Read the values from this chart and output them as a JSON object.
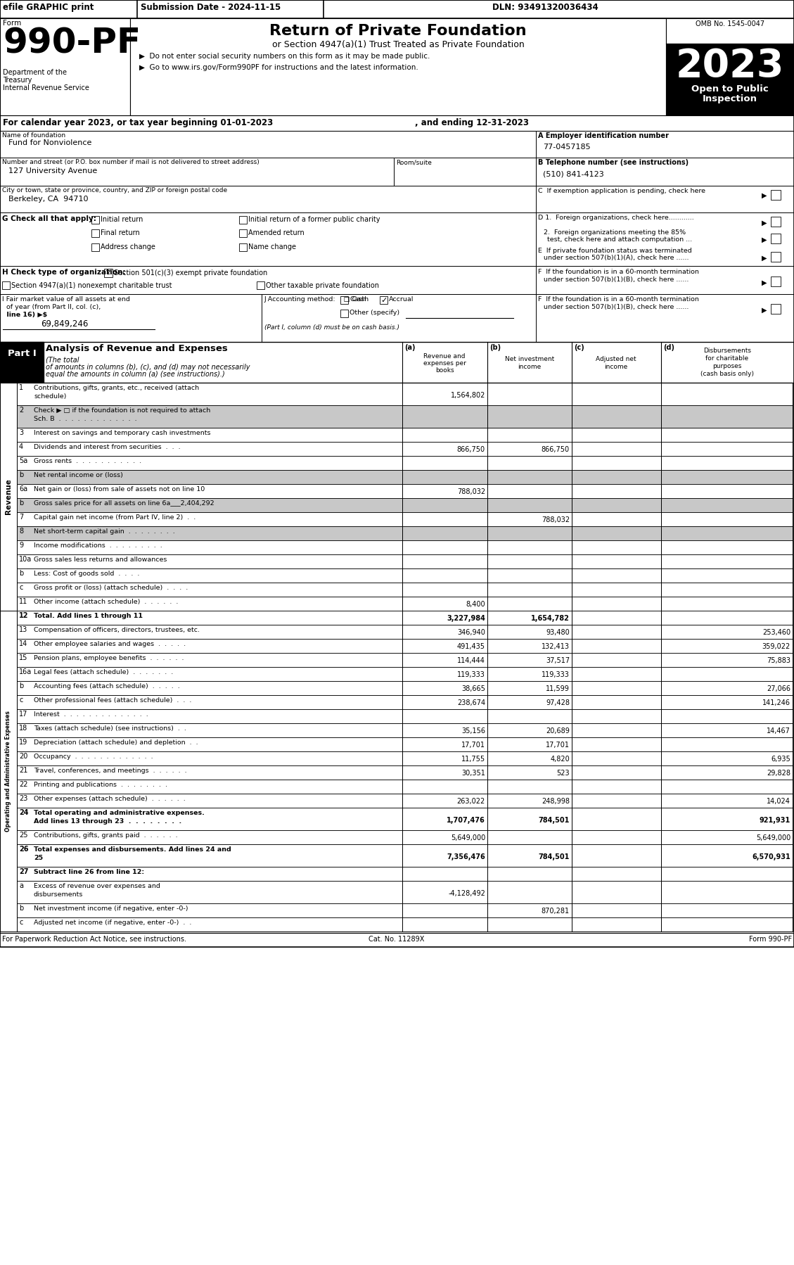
{
  "form_number": "990-PF",
  "form_title": "Return of Private Foundation",
  "form_subtitle": "or Section 4947(a)(1) Trust Treated as Private Foundation",
  "bullet1": "▶  Do not enter social security numbers on this form as it may be made public.",
  "bullet2": "▶  Go to www.irs.gov/Form990PF for instructions and the latest information.",
  "year": "2023",
  "open_to_public": "Open to Public\nInspection",
  "omb": "OMB No. 1545-0047",
  "efile_text": "efile GRAPHIC print",
  "submission_date": "Submission Date - 2024-11-15",
  "dln": "DLN: 93491320036434",
  "dept1": "Department of the",
  "dept2": "Treasury",
  "dept3": "Internal Revenue Service",
  "form_label": "Form",
  "cal_year_text": "For calendar year 2023, or tax year beginning 01-01-2023",
  "ending_text": ", and ending 12-31-2023",
  "name_label": "Name of foundation",
  "name_value": "Fund for Nonviolence",
  "ein_label": "A Employer identification number",
  "ein_value": "77-0457185",
  "address_label": "Number and street (or P.O. box number if mail is not delivered to street address)",
  "room_label": "Room/suite",
  "address_value": "127 University Avenue",
  "phone_label": "B Telephone number (see instructions)",
  "phone_value": "(510) 841-4123",
  "city_label": "City or town, state or province, country, and ZIP or foreign postal code",
  "city_value": "Berkeley, CA  94710",
  "g_label": "G Check all that apply:",
  "initial_return": "Initial return",
  "initial_former": "Initial return of a former public charity",
  "final_return": "Final return",
  "amended_return": "Amended return",
  "address_change": "Address change",
  "name_change": "Name change",
  "h_label": "H Check type of organization:",
  "h_501c3": "Section 501(c)(3) exempt private foundation",
  "h_4947": "Section 4947(a)(1) nonexempt charitable trust",
  "h_other": "Other taxable private foundation",
  "i_value": "69,849,246",
  "j_note": "(Part I, column (d) must be on cash basis.)",
  "part1_title": "Analysis of Revenue and Expenses",
  "part1_italic": "(The total",
  "part1_italic2": "of amounts in columns (b), (c), and (d) may not necessarily",
  "part1_italic3": "equal the amounts in column (a) (see instructions).)",
  "col_a": "Revenue and\nexpenses per\nbooks",
  "col_b": "Net investment\nincome",
  "col_c": "Adjusted net\nincome",
  "col_d": "Disbursements\nfor charitable\npurposes\n(cash basis only)",
  "rows": [
    {
      "num": "1",
      "label": "Contributions, gifts, grants, etc., received (attach\nschedule)",
      "a": "1,564,802",
      "b": "",
      "c": "",
      "d": "",
      "shaded_bc": false
    },
    {
      "num": "2",
      "label": "Check ▶ □ if the foundation is not required to attach\nSch. B  .  .  .  .  .  .  .  .  .  .  .  .  .",
      "a": "",
      "b": "",
      "c": "",
      "d": "",
      "shaded_bc": true
    },
    {
      "num": "3",
      "label": "Interest on savings and temporary cash investments",
      "a": "",
      "b": "",
      "c": "",
      "d": "",
      "shaded_bc": false
    },
    {
      "num": "4",
      "label": "Dividends and interest from securities  .  .  .",
      "a": "866,750",
      "b": "866,750",
      "c": "",
      "d": "",
      "shaded_bc": false
    },
    {
      "num": "5a",
      "label": "Gross rents  .  .  .  .  .  .  .  .  .  .  .",
      "a": "",
      "b": "",
      "c": "",
      "d": "",
      "shaded_bc": false
    },
    {
      "num": "b",
      "label": "Net rental income or (loss)",
      "a": "",
      "b": "",
      "c": "",
      "d": "",
      "shaded_bc": true
    },
    {
      "num": "6a",
      "label": "Net gain or (loss) from sale of assets not on line 10",
      "a": "788,032",
      "b": "",
      "c": "",
      "d": "",
      "shaded_bc": false
    },
    {
      "num": "b",
      "label": "Gross sales price for all assets on line 6a___2,404,292",
      "a": "",
      "b": "",
      "c": "",
      "d": "",
      "shaded_bc": true
    },
    {
      "num": "7",
      "label": "Capital gain net income (from Part IV, line 2)  .  .",
      "a": "",
      "b": "788,032",
      "c": "",
      "d": "",
      "shaded_bc": false
    },
    {
      "num": "8",
      "label": "Net short-term capital gain  .  .  .  .  .  .  .  .",
      "a": "",
      "b": "",
      "c": "",
      "d": "",
      "shaded_bc": true
    },
    {
      "num": "9",
      "label": "Income modifications  .  .  .  .  .  .  .  .  .",
      "a": "",
      "b": "",
      "c": "",
      "d": "",
      "shaded_bc": false
    },
    {
      "num": "10a",
      "label": "Gross sales less returns and allowances",
      "a": "",
      "b": "",
      "c": "",
      "d": "",
      "shaded_bc": false
    },
    {
      "num": "b",
      "label": "Less: Cost of goods sold  .  .  .  .",
      "a": "",
      "b": "",
      "c": "",
      "d": "",
      "shaded_bc": false
    },
    {
      "num": "c",
      "label": "Gross profit or (loss) (attach schedule)  .  .  .  .",
      "a": "",
      "b": "",
      "c": "",
      "d": "",
      "shaded_bc": false
    },
    {
      "num": "11",
      "label": "Other income (attach schedule)  .  .  .  .  .  .",
      "a": "8,400",
      "b": "",
      "c": "",
      "d": "",
      "shaded_bc": false
    },
    {
      "num": "12",
      "label": "Total. Add lines 1 through 11",
      "a": "3,227,984",
      "b": "1,654,782",
      "c": "",
      "d": "",
      "bold": true,
      "shaded_bc": false
    },
    {
      "num": "13",
      "label": "Compensation of officers, directors, trustees, etc.",
      "a": "346,940",
      "b": "93,480",
      "c": "",
      "d": "253,460",
      "shaded_bc": false
    },
    {
      "num": "14",
      "label": "Other employee salaries and wages  .  .  .  .  .",
      "a": "491,435",
      "b": "132,413",
      "c": "",
      "d": "359,022",
      "shaded_bc": false
    },
    {
      "num": "15",
      "label": "Pension plans, employee benefits  .  .  .  .  .  .",
      "a": "114,444",
      "b": "37,517",
      "c": "",
      "d": "75,883",
      "shaded_bc": false
    },
    {
      "num": "16a",
      "label": "Legal fees (attach schedule)  .  .  .  .  .  .  .",
      "a": "119,333",
      "b": "119,333",
      "c": "",
      "d": "",
      "shaded_bc": false
    },
    {
      "num": "b",
      "label": "Accounting fees (attach schedule)  .  .  .  .  .",
      "a": "38,665",
      "b": "11,599",
      "c": "",
      "d": "27,066",
      "shaded_bc": false
    },
    {
      "num": "c",
      "label": "Other professional fees (attach schedule)  .  .  .",
      "a": "238,674",
      "b": "97,428",
      "c": "",
      "d": "141,246",
      "shaded_bc": false
    },
    {
      "num": "17",
      "label": "Interest  .  .  .  .  .  .  .  .  .  .  .  .  .  .",
      "a": "",
      "b": "",
      "c": "",
      "d": "",
      "shaded_bc": false
    },
    {
      "num": "18",
      "label": "Taxes (attach schedule) (see instructions)  .  .",
      "a": "35,156",
      "b": "20,689",
      "c": "",
      "d": "14,467",
      "shaded_bc": false
    },
    {
      "num": "19",
      "label": "Depreciation (attach schedule) and depletion  .  .",
      "a": "17,701",
      "b": "17,701",
      "c": "",
      "d": "",
      "shaded_bc": false
    },
    {
      "num": "20",
      "label": "Occupancy  .  .  .  .  .  .  .  .  .  .  .  .  .",
      "a": "11,755",
      "b": "4,820",
      "c": "",
      "d": "6,935",
      "shaded_bc": false
    },
    {
      "num": "21",
      "label": "Travel, conferences, and meetings  .  .  .  .  .  .",
      "a": "30,351",
      "b": "523",
      "c": "",
      "d": "29,828",
      "shaded_bc": false
    },
    {
      "num": "22",
      "label": "Printing and publications  .  .  .  .  .  .  .  .",
      "a": "",
      "b": "",
      "c": "",
      "d": "",
      "shaded_bc": false
    },
    {
      "num": "23",
      "label": "Other expenses (attach schedule)  .  .  .  .  .  .",
      "a": "263,022",
      "b": "248,998",
      "c": "",
      "d": "14,024",
      "shaded_bc": false,
      "icon23": true
    },
    {
      "num": "24",
      "label": "Total operating and administrative expenses.\nAdd lines 13 through 23  .  .  .  .  .  .  .  .",
      "a": "1,707,476",
      "b": "784,501",
      "c": "",
      "d": "921,931",
      "bold": true,
      "shaded_bc": false
    },
    {
      "num": "25",
      "label": "Contributions, gifts, grants paid  .  .  .  .  .  .",
      "a": "5,649,000",
      "b": "",
      "c": "",
      "d": "5,649,000",
      "shaded_bc": false
    },
    {
      "num": "26",
      "label": "Total expenses and disbursements. Add lines 24 and\n25",
      "a": "7,356,476",
      "b": "784,501",
      "c": "",
      "d": "6,570,931",
      "bold": true,
      "shaded_bc": false
    },
    {
      "num": "27",
      "label": "Subtract line 26 from line 12:",
      "a": "",
      "b": "",
      "c": "",
      "d": "",
      "bold": true,
      "shaded_bc": false
    },
    {
      "num": "a",
      "label": "Excess of revenue over expenses and\ndisbursements",
      "a": "-4,128,492",
      "b": "",
      "c": "",
      "d": "",
      "shaded_bc": false
    },
    {
      "num": "b",
      "label": "Net investment income (if negative, enter -0-)",
      "a": "",
      "b": "870,281",
      "c": "",
      "d": "",
      "shaded_bc": false
    },
    {
      "num": "c",
      "label": "Adjusted net income (if negative, enter -0-)  .  .",
      "a": "",
      "b": "",
      "c": "",
      "d": "",
      "shaded_bc": false
    }
  ],
  "revenue_section_rows": 15,
  "footer_left": "For Paperwork Reduction Act Notice, see instructions.",
  "footer_cat": "Cat. No. 11289X",
  "footer_right": "Form 990-PF"
}
